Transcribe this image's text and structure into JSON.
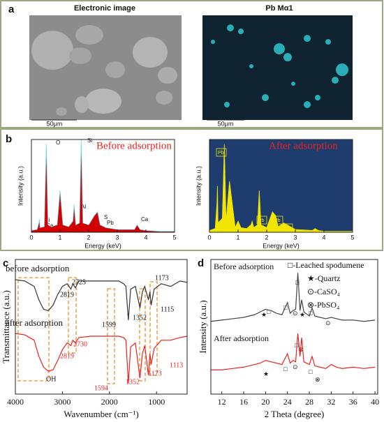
{
  "figure": {
    "panel_labels": [
      "a",
      "b",
      "c",
      "d"
    ]
  },
  "panel_a": {
    "left_title": "Electronic image",
    "right_title": "Pb Mα1",
    "scale_bars": [
      "50μm",
      "50μm"
    ]
  },
  "chart_data": [
    {
      "type": "area",
      "annotation": "Before adsorption",
      "xlabel": "Energy (keV)",
      "ylabel": "Intensity (a.u.)",
      "x": [
        0,
        0.2,
        0.26,
        0.28,
        0.3,
        0.45,
        0.52,
        0.58,
        0.7,
        0.9,
        1.0,
        1.1,
        1.3,
        1.45,
        1.49,
        1.55,
        1.68,
        1.74,
        1.8,
        2.0,
        2.2,
        2.31,
        2.4,
        2.6,
        3.0,
        3.6,
        3.69,
        3.8,
        4.0,
        4.5,
        5.0
      ],
      "series": [
        {
          "color": "#d40000",
          "values": [
            2,
            3,
            10,
            14,
            5,
            6,
            95,
            8,
            6,
            8,
            45,
            8,
            6,
            12,
            30,
            8,
            10,
            100,
            10,
            8,
            18,
            22,
            8,
            5,
            3,
            3,
            8,
            3,
            2,
            1,
            1
          ]
        }
      ],
      "xlim": [
        0,
        5
      ],
      "xticks": [
        0,
        1,
        2,
        3,
        4,
        5
      ],
      "ylim": [
        0,
        100
      ],
      "peak_labels": [
        "O",
        "Si",
        "Al",
        "S",
        "Pb",
        "Ca",
        "Si",
        "Ca"
      ]
    },
    {
      "type": "area",
      "annotation": "After adsorption",
      "xlabel": "Energy (keV)",
      "ylabel": "Intensity (a.u.)",
      "x": [
        0,
        0.2,
        0.26,
        0.28,
        0.3,
        0.45,
        0.52,
        0.58,
        0.7,
        0.9,
        1.0,
        1.1,
        1.3,
        1.45,
        1.49,
        1.55,
        1.68,
        1.74,
        1.8,
        2.0,
        2.2,
        2.31,
        2.4,
        2.6,
        3.0,
        3.6,
        3.69,
        3.8,
        4.0,
        4.5,
        5.0
      ],
      "series": [
        {
          "color": "#f2e600",
          "values": [
            2,
            4,
            30,
            50,
            10,
            15,
            95,
            12,
            55,
            5,
            12,
            5,
            4,
            8,
            12,
            5,
            8,
            45,
            8,
            5,
            22,
            18,
            6,
            10,
            3,
            2,
            4,
            2,
            1,
            1,
            1
          ]
        }
      ],
      "xlim": [
        0,
        5
      ],
      "xticks": [
        0,
        1,
        2,
        3,
        4,
        5
      ],
      "ylim": [
        0,
        100
      ],
      "background": "#1e3d6e",
      "peak_labels": [
        "Pb",
        "Pb",
        "Pb",
        "Pb"
      ]
    },
    {
      "type": "line",
      "xlabel": "Wavenumber (cm⁻¹)",
      "ylabel": "Transmittance (a.u.)",
      "x": [
        4000,
        3800,
        3600,
        3500,
        3400,
        3300,
        3200,
        3100,
        3000,
        2900,
        2819,
        2780,
        2725,
        2650,
        2400,
        2000,
        1800,
        1700,
        1650,
        1599,
        1550,
        1450,
        1352,
        1300,
        1250,
        1173,
        1140,
        1115,
        1050,
        900,
        700,
        500,
        350
      ],
      "series": [
        {
          "name": "before adsorption",
          "color": "#333333",
          "values": [
            85,
            84,
            80,
            70,
            63,
            62,
            66,
            74,
            80,
            82,
            78,
            82,
            79,
            84,
            84,
            84,
            84,
            82,
            80,
            55,
            78,
            80,
            64,
            76,
            80,
            70,
            76,
            66,
            78,
            82,
            80,
            84,
            83
          ]
        },
        {
          "name": "after adsorption",
          "color": "#e8231f",
          "values": [
            45,
            44,
            40,
            28,
            20,
            17,
            18,
            25,
            33,
            38,
            36,
            40,
            38,
            42,
            43,
            43,
            43,
            42,
            40,
            8,
            35,
            38,
            12,
            30,
            36,
            14,
            30,
            22,
            34,
            40,
            40,
            42,
            43
          ]
        }
      ],
      "xlim": [
        4000,
        350
      ],
      "xticks": [
        4000,
        3000,
        2000,
        1000
      ],
      "ylim": [
        0,
        100
      ],
      "annotations_before": [
        "2725",
        "2819",
        "1599",
        "1352",
        "1115",
        "1173"
      ],
      "annotations_after": [
        "2730",
        "2819",
        "1594",
        "1352",
        "1173",
        "1113",
        "OH"
      ]
    },
    {
      "type": "line",
      "xlabel": "2 Theta (degree)",
      "ylabel": "Intensity (a.u.)",
      "x": [
        10,
        12,
        14,
        16,
        18,
        19,
        20,
        21,
        22,
        23,
        24,
        24.5,
        25,
        25.5,
        25.9,
        26.3,
        26.6,
        27,
        28,
        28.5,
        29,
        30,
        31,
        32,
        33,
        34,
        36,
        38,
        40
      ],
      "series": [
        {
          "name": "Before adsorption",
          "color": "#444444",
          "values": [
            54,
            55,
            56,
            57,
            59,
            61,
            63,
            62,
            60,
            59,
            68,
            60,
            62,
            63,
            90,
            62,
            70,
            61,
            58,
            64,
            58,
            57,
            56,
            57,
            56,
            55,
            55,
            54,
            55
          ]
        },
        {
          "name": "After adsorption",
          "color": "#e8231f",
          "values": [
            18,
            18,
            19,
            20,
            22,
            23,
            25,
            24,
            23,
            22,
            30,
            23,
            25,
            24,
            45,
            28,
            42,
            24,
            22,
            28,
            21,
            20,
            19,
            22,
            20,
            19,
            20,
            19,
            20
          ]
        }
      ],
      "xlim": [
        10,
        40.5
      ],
      "xticks": [
        12,
        16,
        20,
        24,
        28,
        32,
        36,
        40
      ],
      "ylim": [
        0,
        100
      ],
      "legend": [
        "□-Leached spodumene",
        "★-Quartz",
        "⊙-CaSO₄",
        "⊗-PbSO₄"
      ]
    }
  ]
}
